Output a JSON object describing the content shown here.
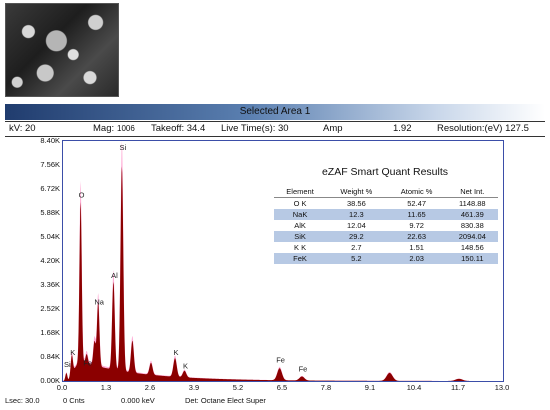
{
  "title": "Selected Area 1",
  "params": {
    "kv": "kV: 20",
    "mag_label": "Mag:",
    "mag_value": "1006",
    "takeoff": "Takeoff:  34.4",
    "live_time": "Live Time(s):  30",
    "amp_label": "Amp",
    "amp_value": "1.92",
    "resolution": "Resolution:(eV)   127.5"
  },
  "results": {
    "title": "eZAF Smart Quant Results",
    "headers": [
      "Element",
      "Weight %",
      "Atomic %",
      "Net Int."
    ],
    "rows": [
      [
        "O K",
        "38.56",
        "52.47",
        "1148.88"
      ],
      [
        "NaK",
        "12.3",
        "11.65",
        "461.39"
      ],
      [
        "AlK",
        "12.04",
        "9.72",
        "830.38"
      ],
      [
        "SiK",
        "29.2",
        "22.63",
        "2094.04"
      ],
      [
        "K K",
        "2.7",
        "1.51",
        "148.56"
      ],
      [
        "FeK",
        "5.2",
        "2.03",
        "150.11"
      ]
    ]
  },
  "footer": {
    "lsec": "Lsec: 30.0",
    "cnts": "0 Cnts",
    "kev": "0.000 keV",
    "det": "Det: Octane Elect Super"
  },
  "chart_data": {
    "type": "area",
    "xlabel": "",
    "ylabel": "",
    "xlim": [
      0.0,
      13.0
    ],
    "ylim": [
      0,
      8400
    ],
    "x_ticks": [
      "0.0",
      "1.3",
      "2.6",
      "3.9",
      "5.2",
      "6.5",
      "7.8",
      "9.1",
      "10.4",
      "11.7",
      "13.0"
    ],
    "y_ticks": [
      "0.00K",
      "0.84K",
      "1.68K",
      "2.52K",
      "3.36K",
      "4.20K",
      "5.04K",
      "5.88K",
      "6.72K",
      "7.56K",
      "8.40K"
    ],
    "colors": {
      "spectrum": "#8b0000",
      "envelope": "#ff9fcf",
      "frame": "#3b4ea8"
    },
    "peaks": [
      {
        "label": "Si",
        "x": 0.1,
        "y": 300
      },
      {
        "label": "K",
        "x": 0.26,
        "y": 700
      },
      {
        "label": "O",
        "x": 0.52,
        "y": 6000
      },
      {
        "label": "Fe",
        "x": 0.7,
        "y": 350
      },
      {
        "label": "Na",
        "x": 1.04,
        "y": 2400
      },
      {
        "label": "Al",
        "x": 1.49,
        "y": 3300
      },
      {
        "label": "Si",
        "x": 1.74,
        "y": 7700
      },
      {
        "label": "K",
        "x": 3.31,
        "y": 700
      },
      {
        "label": "K",
        "x": 3.59,
        "y": 250
      },
      {
        "label": "Fe",
        "x": 6.4,
        "y": 450
      },
      {
        "label": "Fe",
        "x": 7.06,
        "y": 150
      }
    ],
    "extra_peaks": [
      {
        "x": 0.93,
        "y": 900
      },
      {
        "x": 2.05,
        "y": 1200
      },
      {
        "x": 2.6,
        "y": 450
      },
      {
        "x": 9.65,
        "y": 300
      },
      {
        "x": 11.7,
        "y": 80
      }
    ]
  }
}
